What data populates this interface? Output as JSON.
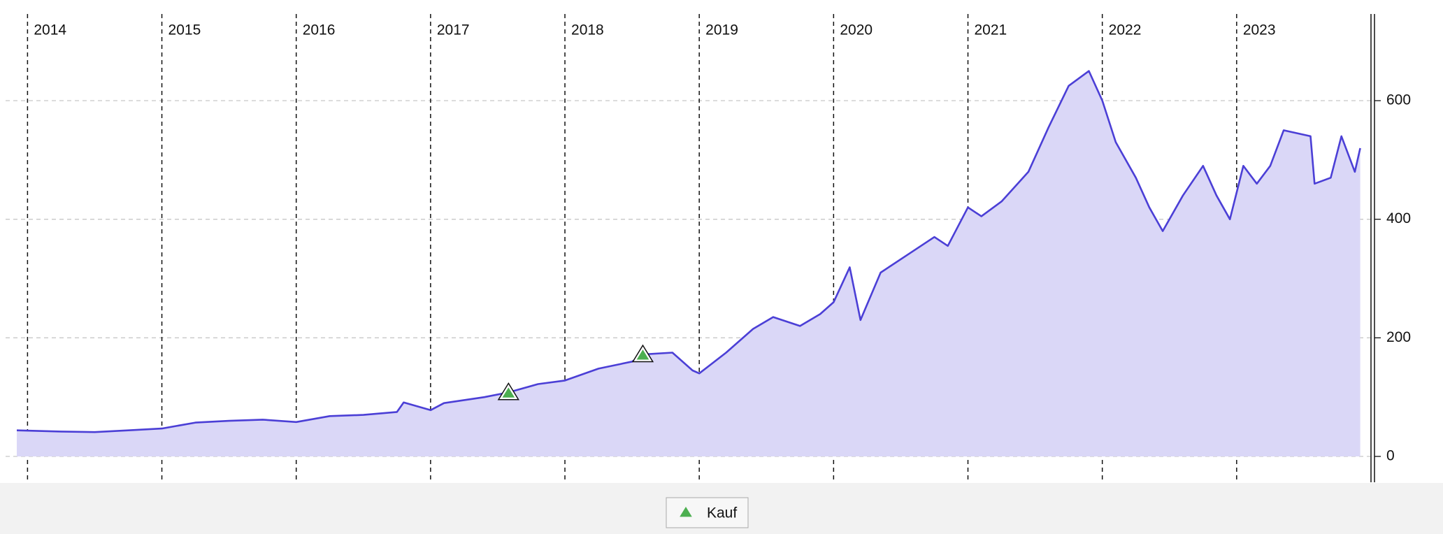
{
  "chart_data": {
    "type": "line",
    "x": [
      2013.92,
      2014.25,
      2014.5,
      2014.75,
      2015.0,
      2015.25,
      2015.5,
      2015.75,
      2016.0,
      2016.25,
      2016.5,
      2016.75,
      2016.8,
      2017.0,
      2017.1,
      2017.4,
      2017.58,
      2017.8,
      2018.0,
      2018.25,
      2018.5,
      2018.58,
      2018.8,
      2018.95,
      2019.0,
      2019.2,
      2019.4,
      2019.55,
      2019.75,
      2019.9,
      2020.0,
      2020.12,
      2020.2,
      2020.35,
      2020.55,
      2020.75,
      2020.85,
      2021.0,
      2021.1,
      2021.25,
      2021.45,
      2021.6,
      2021.75,
      2021.9,
      2022.0,
      2022.1,
      2022.25,
      2022.35,
      2022.45,
      2022.6,
      2022.75,
      2022.85,
      2022.95,
      2023.05,
      2023.15,
      2023.25,
      2023.35,
      2023.55,
      2023.58,
      2023.7,
      2023.78,
      2023.88,
      2023.92
    ],
    "series": [
      {
        "color": "#4b3fd6",
        "fill": "#dad7f7",
        "values": [
          44,
          42,
          41,
          44,
          47,
          57,
          60,
          62,
          58,
          68,
          70,
          75,
          91,
          78,
          90,
          100,
          108,
          122,
          128,
          148,
          160,
          172,
          175,
          145,
          140,
          175,
          215,
          235,
          220,
          240,
          260,
          319,
          230,
          310,
          340,
          370,
          355,
          420,
          405,
          430,
          480,
          555,
          625,
          650,
          600,
          530,
          470,
          420,
          380,
          440,
          490,
          440,
          400,
          490,
          460,
          490,
          550,
          540,
          460,
          470,
          540,
          480,
          520
        ]
      }
    ],
    "markers": {
      "name": "Kauf",
      "color": "#4caf50",
      "x": [
        2017.58,
        2018.58
      ],
      "values": [
        108,
        172
      ]
    },
    "xlim": [
      2013.92,
      2024.0
    ],
    "xticks": [
      2014,
      2015,
      2016,
      2017,
      2018,
      2019,
      2020,
      2021,
      2022,
      2023
    ],
    "ylim": [
      0,
      745
    ],
    "yticks": [
      0,
      200,
      400,
      600
    ],
    "grid": true
  }
}
